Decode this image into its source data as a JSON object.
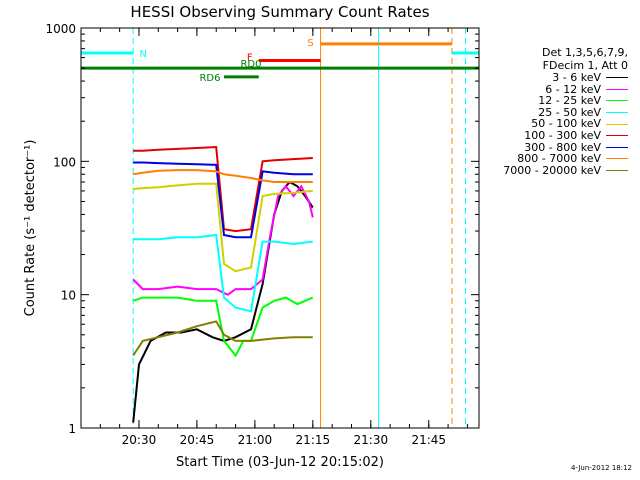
{
  "chart_data": {
    "type": "line",
    "title": "HESSI Observing Summary Count Rates",
    "xlabel": "Start Time (03-Jun-12 20:15:02)",
    "ylabel": "Count Rate (s⁻¹ detector⁻¹)",
    "yscale": "log",
    "ylim": [
      1,
      1000
    ],
    "xlim_minutes_after_2015": [
      0,
      103
    ],
    "x_ticks": [
      "20:30",
      "20:45",
      "21:00",
      "21:15",
      "21:30",
      "21:45"
    ],
    "y_ticks": [
      "1",
      "10",
      "100",
      "1000"
    ],
    "grid": false,
    "legend_placement": "right",
    "legend_header": [
      "Det 1,3,5,6,7,9,",
      "FDecim 1, Att 0"
    ],
    "series": [
      {
        "name": "3 - 6 keV",
        "color": "#000000",
        "values": [
          [
            13.5,
            1.1
          ],
          [
            15,
            3
          ],
          [
            18,
            4.5
          ],
          [
            22,
            5.2
          ],
          [
            26,
            5.2
          ],
          [
            30,
            5.5
          ],
          [
            34,
            4.8
          ],
          [
            37,
            4.5
          ],
          [
            40,
            4.8
          ],
          [
            44,
            5.5
          ],
          [
            47,
            12
          ],
          [
            50,
            40
          ],
          [
            52,
            60
          ],
          [
            54,
            70
          ],
          [
            56,
            65
          ],
          [
            58,
            55
          ],
          [
            60,
            45
          ]
        ]
      },
      {
        "name": "6 - 12 keV",
        "color": "#ff00ff",
        "values": [
          [
            13.5,
            13
          ],
          [
            16,
            11
          ],
          [
            20,
            11
          ],
          [
            25,
            11.5
          ],
          [
            30,
            11
          ],
          [
            35,
            11
          ],
          [
            38,
            10
          ],
          [
            40,
            11
          ],
          [
            44,
            11
          ],
          [
            47,
            13
          ],
          [
            49,
            28
          ],
          [
            51,
            55
          ],
          [
            53,
            65
          ],
          [
            55,
            55
          ],
          [
            57,
            65
          ],
          [
            59,
            50
          ],
          [
            60,
            38
          ]
        ]
      },
      {
        "name": "12 - 25 keV",
        "color": "#00ff00",
        "values": [
          [
            13.5,
            9
          ],
          [
            16,
            9.5
          ],
          [
            20,
            9.5
          ],
          [
            25,
            9.5
          ],
          [
            30,
            9
          ],
          [
            35,
            9
          ],
          [
            37,
            4.5
          ],
          [
            40,
            3.5
          ],
          [
            42,
            4.5
          ],
          [
            44,
            4.5
          ],
          [
            47,
            8
          ],
          [
            50,
            9
          ],
          [
            53,
            9.5
          ],
          [
            56,
            8.5
          ],
          [
            60,
            9.5
          ]
        ]
      },
      {
        "name": "25 - 50 keV",
        "color": "#00ffff",
        "values": [
          [
            13.5,
            26
          ],
          [
            16,
            26
          ],
          [
            20,
            26
          ],
          [
            25,
            27
          ],
          [
            30,
            27
          ],
          [
            35,
            28
          ],
          [
            37,
            9.5
          ],
          [
            40,
            8
          ],
          [
            44,
            7.5
          ],
          [
            47,
            25
          ],
          [
            50,
            25
          ],
          [
            55,
            24
          ],
          [
            60,
            25
          ]
        ]
      },
      {
        "name": "50 - 100 keV",
        "color": "#d0d000",
        "values": [
          [
            13.5,
            62
          ],
          [
            16,
            63
          ],
          [
            20,
            64
          ],
          [
            25,
            66
          ],
          [
            30,
            68
          ],
          [
            35,
            68
          ],
          [
            37,
            17
          ],
          [
            40,
            15
          ],
          [
            44,
            16
          ],
          [
            47,
            55
          ],
          [
            50,
            57
          ],
          [
            55,
            58
          ],
          [
            60,
            60
          ]
        ]
      },
      {
        "name": "100 - 300 keV",
        "color": "#e00000",
        "values": [
          [
            13.5,
            120
          ],
          [
            16,
            120
          ],
          [
            20,
            122
          ],
          [
            25,
            124
          ],
          [
            30,
            126
          ],
          [
            35,
            128
          ],
          [
            37,
            31
          ],
          [
            40,
            30
          ],
          [
            44,
            31
          ],
          [
            47,
            100
          ],
          [
            50,
            102
          ],
          [
            55,
            104
          ],
          [
            60,
            106
          ]
        ]
      },
      {
        "name": "300 - 800 keV",
        "color": "#0000e0",
        "values": [
          [
            13.5,
            98
          ],
          [
            16,
            98
          ],
          [
            20,
            97
          ],
          [
            25,
            96
          ],
          [
            30,
            95
          ],
          [
            35,
            94
          ],
          [
            37,
            28
          ],
          [
            40,
            27
          ],
          [
            44,
            27
          ],
          [
            47,
            84
          ],
          [
            50,
            82
          ],
          [
            55,
            80
          ],
          [
            60,
            80
          ]
        ]
      },
      {
        "name": "800 - 7000 keV",
        "color": "#ff8000",
        "values": [
          [
            13.5,
            80
          ],
          [
            16,
            82
          ],
          [
            20,
            85
          ],
          [
            25,
            86
          ],
          [
            30,
            86
          ],
          [
            35,
            84
          ],
          [
            37,
            80
          ],
          [
            40,
            78
          ],
          [
            44,
            75
          ],
          [
            47,
            72
          ],
          [
            50,
            70
          ],
          [
            55,
            70
          ],
          [
            60,
            70
          ]
        ]
      },
      {
        "name": "7000 - 20000 keV",
        "color": "#808000",
        "values": [
          [
            13.5,
            3.5
          ],
          [
            16,
            4.5
          ],
          [
            20,
            4.8
          ],
          [
            25,
            5.2
          ],
          [
            30,
            5.8
          ],
          [
            35,
            6.3
          ],
          [
            37,
            5
          ],
          [
            40,
            4.5
          ],
          [
            44,
            4.5
          ],
          [
            47,
            4.6
          ],
          [
            50,
            4.7
          ],
          [
            55,
            4.8
          ],
          [
            60,
            4.8
          ]
        ]
      }
    ],
    "annotations": [
      {
        "text": "N",
        "color": "#00ffff",
        "x0": 0,
        "x1": 13.5,
        "y": 650
      },
      {
        "text": "S",
        "color": "#ff8000",
        "x0": 62,
        "x1": 96,
        "y": 760
      },
      {
        "text": "F",
        "color": "#ff0000",
        "x0": 46,
        "x1": 62,
        "y": 570
      },
      {
        "text": "RD0",
        "color": "#008000",
        "x0": 0,
        "x1": 103,
        "y": 500
      },
      {
        "text": "RD6",
        "color": "#008000",
        "x0": 37,
        "x1": 46,
        "y": 430
      }
    ],
    "night_segments": [
      {
        "color": "#00ffff",
        "x0": 96,
        "x1": 103,
        "y": 650
      }
    ],
    "vertical_markers": [
      {
        "x": 0,
        "color": "#00ffff",
        "style": "solid"
      },
      {
        "x": 13.5,
        "color": "#00ffff",
        "style": "dashed"
      },
      {
        "x": 62,
        "color": "#ff8000",
        "style": "solid"
      },
      {
        "x": 77,
        "color": "#00ffff",
        "style": "solid"
      },
      {
        "x": 96,
        "color": "#ff8000",
        "style": "dashed"
      },
      {
        "x": 99.5,
        "color": "#00ffff",
        "style": "dashed"
      }
    ]
  },
  "footer": {
    "timestamp": "4-Jun-2012 18:12"
  }
}
